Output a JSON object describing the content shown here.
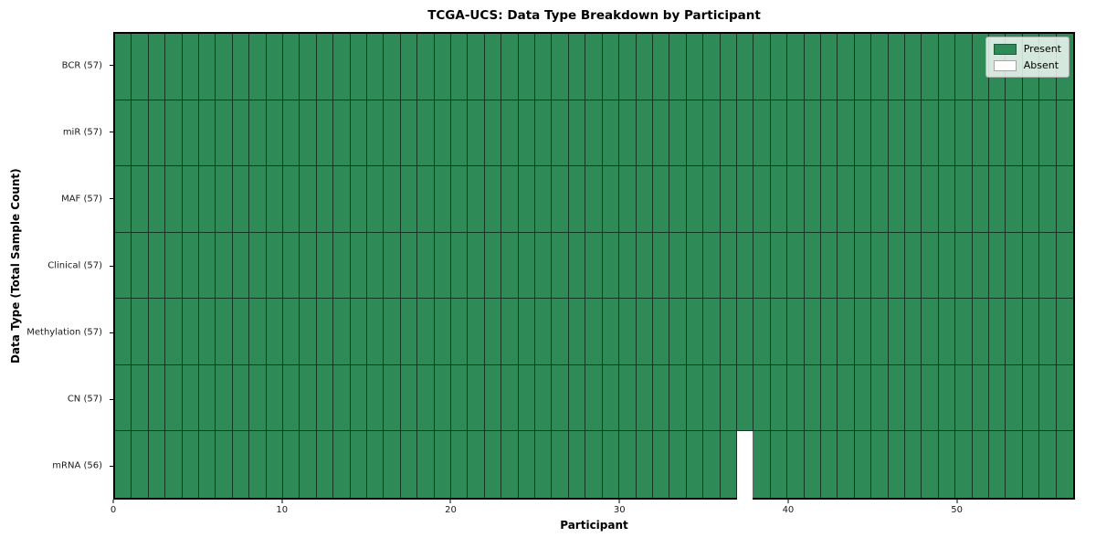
{
  "chart_data": {
    "type": "heatmap",
    "title": "TCGA-UCS: Data Type Breakdown by Participant",
    "xlabel": "Participant",
    "ylabel": "Data Type (Total Sample Count)",
    "x_range": [
      0,
      57
    ],
    "x_ticks": [
      0,
      10,
      20,
      30,
      40,
      50
    ],
    "n_participants": 57,
    "rows": [
      {
        "label": "BCR (57)",
        "total_samples": 57,
        "absent_participants": []
      },
      {
        "label": "miR (57)",
        "total_samples": 57,
        "absent_participants": []
      },
      {
        "label": "MAF (57)",
        "total_samples": 57,
        "absent_participants": []
      },
      {
        "label": "Clinical (57)",
        "total_samples": 57,
        "absent_participants": []
      },
      {
        "label": "Methylation (57)",
        "total_samples": 57,
        "absent_participants": []
      },
      {
        "label": "CN (57)",
        "total_samples": 57,
        "absent_participants": []
      },
      {
        "label": "mRNA (56)",
        "total_samples": 56,
        "absent_participants": [
          37
        ]
      }
    ],
    "legend": [
      {
        "label": "Present",
        "color": "#2e8b57"
      },
      {
        "label": "Absent",
        "color": "#ffffff"
      }
    ],
    "colors": {
      "present": "#2e8b57",
      "absent": "#ffffff",
      "cell_edge": "rgba(0,0,0,0.60)",
      "plot_border": "#000000"
    },
    "legend_position": "upper right"
  }
}
